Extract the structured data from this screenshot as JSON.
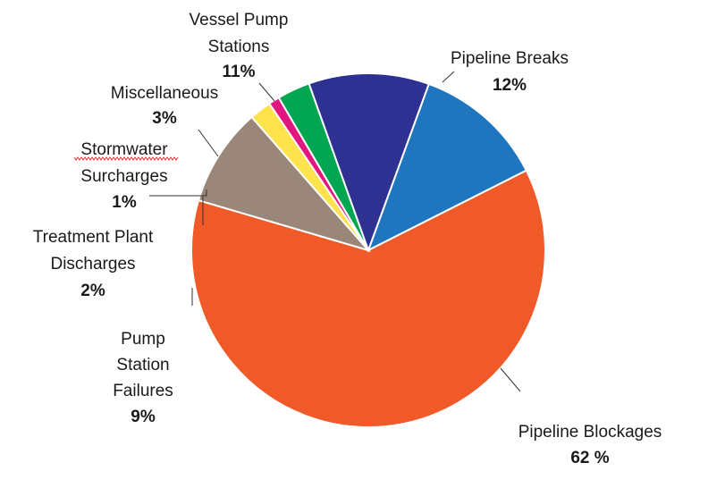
{
  "chart_data": {
    "type": "pie",
    "title": "",
    "legend": "none",
    "slices": [
      {
        "label": [
          "Pipeline Breaks"
        ],
        "value": 12,
        "value_label": "12%",
        "color": "#1F75BE"
      },
      {
        "label": [
          "Pipeline Blockages"
        ],
        "value": 62,
        "value_label": "62 %",
        "color": "#F05A28"
      },
      {
        "label": [
          "Pump",
          "Station",
          "Failures"
        ],
        "value": 9,
        "value_label": "9%",
        "color": "#9B877A"
      },
      {
        "label": [
          "Treatment Plant",
          "Discharges"
        ],
        "value": 2,
        "value_label": "2%",
        "color": "#FFE34D"
      },
      {
        "label": [
          "Stormwater",
          "Surcharges"
        ],
        "value": 1,
        "value_label": "1%",
        "color": "#E0177F"
      },
      {
        "label": [
          "Miscellaneous"
        ],
        "value": 3,
        "value_label": "3%",
        "color": "#00A651"
      },
      {
        "label": [
          "Vessel Pump",
          "Stations"
        ],
        "value": 11,
        "value_label": "11%",
        "color": "#2E3192"
      }
    ]
  }
}
